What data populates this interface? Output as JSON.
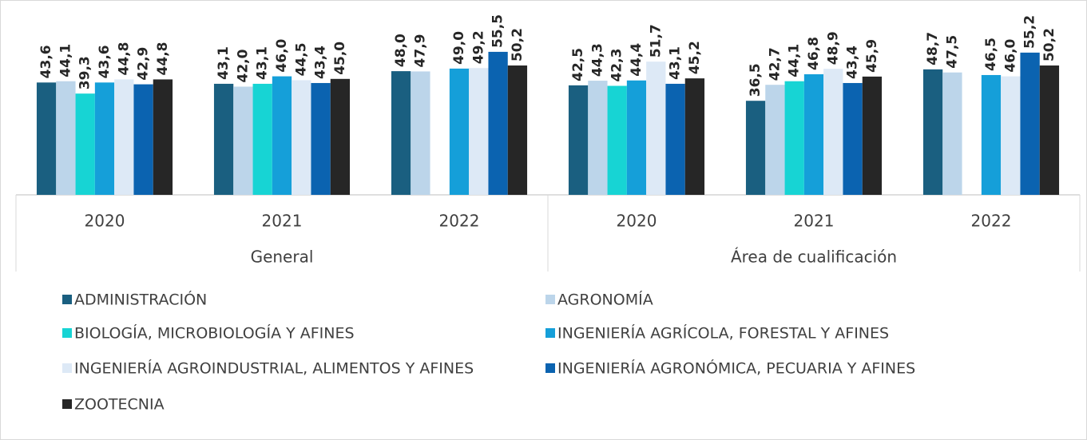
{
  "chart_data": {
    "type": "bar",
    "groups": [
      {
        "name": "General",
        "categories": [
          "2020",
          "2021",
          "2022"
        ]
      },
      {
        "name": "Área de cualificación",
        "categories": [
          "2020",
          "2021",
          "2022"
        ]
      }
    ],
    "ylim": [
      0,
      75
    ],
    "series": [
      {
        "name": "ADMINISTRACIÓN",
        "color": "#1a5f80",
        "values": [
          43.6,
          43.1,
          48.0,
          42.5,
          36.5,
          48.7
        ],
        "value_labels": [
          "43,6",
          "43,1",
          "48,0",
          "42,5",
          "36,5",
          "48,7"
        ]
      },
      {
        "name": "AGRONOMÍA",
        "color": "#bcd5ea",
        "values": [
          44.1,
          42.0,
          47.9,
          44.3,
          42.7,
          47.5
        ],
        "value_labels": [
          "44,1",
          "42,0",
          "47,9",
          "44,3",
          "42,7",
          "47,5"
        ]
      },
      {
        "name": "BIOLOGÍA, MICROBIOLOGÍA Y AFINES",
        "color": "#17d4d4",
        "values": [
          39.3,
          43.1,
          null,
          42.3,
          44.1,
          null
        ],
        "value_labels": [
          "39,3",
          "43,1",
          null,
          "42,3",
          "44,1",
          null
        ]
      },
      {
        "name": "INGENIERÍA AGRÍCOLA, FORESTAL Y AFINES",
        "color": "#159fd9",
        "values": [
          43.6,
          46.0,
          49.0,
          44.4,
          46.8,
          46.5
        ],
        "value_labels": [
          "43,6",
          "46,0",
          "49,0",
          "44,4",
          "46,8",
          "46,5"
        ]
      },
      {
        "name": "INGENIERÍA AGROINDUSTRIAL, ALIMENTOS Y AFINES",
        "color": "#dde9f6",
        "values": [
          44.8,
          44.5,
          49.2,
          51.7,
          48.9,
          46.0
        ],
        "value_labels": [
          "44,8",
          "44,5",
          "49,2",
          "51,7",
          "48,9",
          "46,0"
        ]
      },
      {
        "name": "INGENIERÍA AGRONÓMICA, PECUARIA Y AFINES",
        "color": "#0b63b0",
        "values": [
          42.9,
          43.4,
          55.5,
          43.1,
          43.4,
          55.2
        ],
        "value_labels": [
          "42,9",
          "43,4",
          "55,5",
          "43,1",
          "43,4",
          "55,2"
        ]
      },
      {
        "name": "ZOOTECNIA",
        "color": "#262626",
        "values": [
          44.8,
          45.0,
          50.2,
          45.2,
          45.9,
          50.2
        ],
        "value_labels": [
          "44,8",
          "45,0",
          "50,2",
          "45,2",
          "45,9",
          "50,2"
        ]
      }
    ]
  }
}
